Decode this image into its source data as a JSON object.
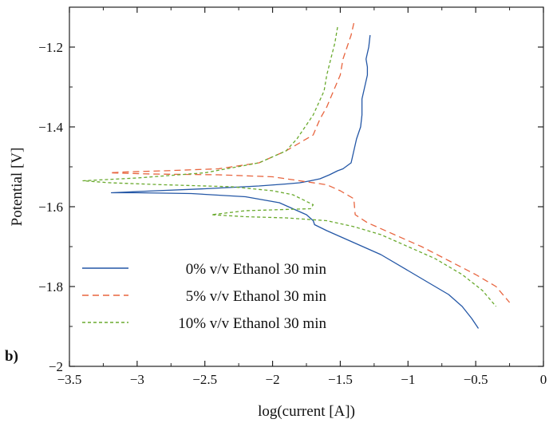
{
  "panel_label": "b)",
  "chart_data": {
    "type": "line",
    "title": "",
    "xlabel": "log(current [A])",
    "ylabel": "Potential [V]",
    "xlim": [
      -3.5,
      0
    ],
    "ylim": [
      -2.0,
      -1.1
    ],
    "xticks": [
      -3.5,
      -3,
      -2.5,
      -2,
      -1.5,
      -1,
      -0.5,
      0
    ],
    "xtick_labels": [
      "−3.5",
      "−3",
      "−2.5",
      "−2",
      "−1.5",
      "−1",
      "−0.5",
      "0"
    ],
    "yticks": [
      -2.0,
      -1.8,
      -1.6,
      -1.4,
      -1.2
    ],
    "ytick_labels": [
      "−2",
      "−1.8",
      "−1.6",
      "−1.4",
      "−1.2"
    ],
    "grid": false,
    "legend_position": "bottom-left",
    "series": [
      {
        "name": "0% v/v Ethanol 30 min",
        "color": "#2457a6",
        "dash": "solid",
        "x": [
          -1.28,
          -1.29,
          -1.31,
          -1.3,
          -1.3,
          -1.32,
          -1.34,
          -1.34,
          -1.35,
          -1.38,
          -1.4,
          -1.42,
          -1.44,
          -1.48,
          -1.52,
          -1.58,
          -1.65,
          -1.72,
          -1.8,
          -1.9,
          -2.1,
          -2.5,
          -3.0,
          -3.19,
          -3.0,
          -2.6,
          -2.2,
          -1.95,
          -1.85,
          -1.75,
          -1.7,
          -1.69,
          -1.6,
          -1.4,
          -1.2,
          -1.0,
          -0.85,
          -0.7,
          -0.6,
          -0.53,
          -0.48
        ],
        "y": [
          -1.17,
          -1.2,
          -1.23,
          -1.25,
          -1.27,
          -1.3,
          -1.33,
          -1.37,
          -1.4,
          -1.43,
          -1.46,
          -1.49,
          -1.495,
          -1.505,
          -1.51,
          -1.52,
          -1.53,
          -1.535,
          -1.54,
          -1.543,
          -1.548,
          -1.555,
          -1.562,
          -1.565,
          -1.565,
          -1.567,
          -1.575,
          -1.59,
          -1.605,
          -1.62,
          -1.635,
          -1.645,
          -1.66,
          -1.69,
          -1.72,
          -1.76,
          -1.79,
          -1.82,
          -1.85,
          -1.88,
          -1.905
        ]
      },
      {
        "name": "5% v/v Ethanol 30 min",
        "color": "#e8653f",
        "dash": "8,5",
        "x": [
          -1.4,
          -1.42,
          -1.45,
          -1.48,
          -1.5,
          -1.55,
          -1.6,
          -1.65,
          -1.7,
          -1.8,
          -1.9,
          -2.1,
          -2.4,
          -2.8,
          -3.1,
          -3.2,
          -2.9,
          -2.4,
          -2.0,
          -1.8,
          -1.6,
          -1.5,
          -1.4,
          -1.39,
          -1.3,
          -1.1,
          -0.9,
          -0.7,
          -0.5,
          -0.35,
          -0.25
        ],
        "y": [
          -1.14,
          -1.17,
          -1.2,
          -1.23,
          -1.27,
          -1.31,
          -1.35,
          -1.38,
          -1.42,
          -1.44,
          -1.46,
          -1.49,
          -1.505,
          -1.51,
          -1.513,
          -1.515,
          -1.518,
          -1.52,
          -1.525,
          -1.535,
          -1.545,
          -1.56,
          -1.58,
          -1.62,
          -1.64,
          -1.67,
          -1.7,
          -1.735,
          -1.77,
          -1.8,
          -1.84
        ]
      },
      {
        "name": "10% v/v Ethanol 30 min",
        "color": "#6aaa2e",
        "dash": "4,3",
        "x": [
          -1.52,
          -1.54,
          -1.57,
          -1.6,
          -1.62,
          -1.66,
          -1.7,
          -1.76,
          -1.82,
          -1.9,
          -2.1,
          -2.5,
          -3.0,
          -3.4,
          -3.2,
          -2.8,
          -2.3,
          -2.0,
          -1.85,
          -1.7,
          -1.72,
          -2.2,
          -2.45,
          -2.2,
          -1.9,
          -1.6,
          -1.4,
          -1.2,
          -1.0,
          -0.8,
          -0.6,
          -0.45,
          -0.35
        ],
        "y": [
          -1.15,
          -1.19,
          -1.23,
          -1.27,
          -1.31,
          -1.34,
          -1.37,
          -1.4,
          -1.43,
          -1.46,
          -1.49,
          -1.515,
          -1.528,
          -1.535,
          -1.54,
          -1.545,
          -1.55,
          -1.56,
          -1.57,
          -1.595,
          -1.605,
          -1.61,
          -1.62,
          -1.625,
          -1.628,
          -1.635,
          -1.65,
          -1.67,
          -1.7,
          -1.73,
          -1.77,
          -1.81,
          -1.85
        ]
      }
    ]
  }
}
